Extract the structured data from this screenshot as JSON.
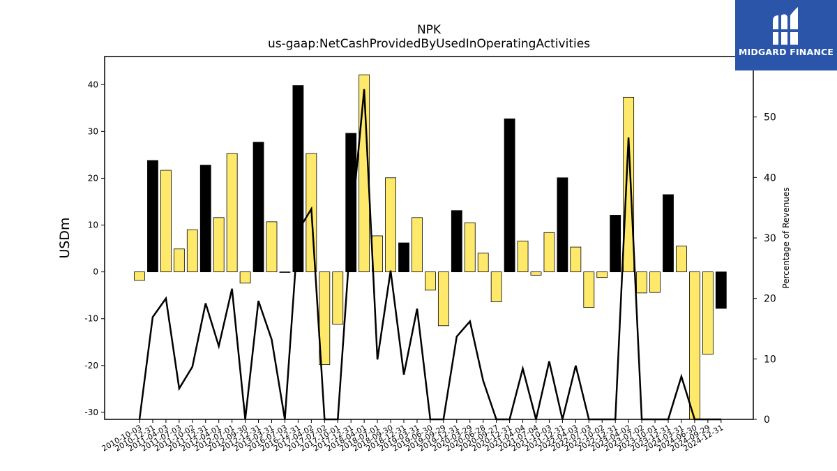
{
  "logo": {
    "text": "MIDGARD FINANCE"
  },
  "chart_data": {
    "type": "bar",
    "title": "NPK",
    "subtitle": "us-gaap:NetCashProvidedByUsedInOperatingActivities",
    "ylabel": "USDm",
    "y2label": "Percentage of Revenues",
    "ylim": [
      -31.5,
      46
    ],
    "y2lim": [
      0,
      60
    ],
    "yticks": [
      -30,
      -20,
      -10,
      0,
      10,
      20,
      30,
      40
    ],
    "y2ticks": [
      0,
      10,
      20,
      30,
      40,
      50
    ],
    "categories": [
      "2010-10-03",
      "2010-12-31",
      "2011-04-03",
      "2011-07-03",
      "2011-10-02",
      "2011-12-31",
      "2012-04-01",
      "2012-07-01",
      "2012-09-30",
      "2012-12-31",
      "2013-03-31",
      "2016-07-03",
      "2016-12-31",
      "2017-04-02",
      "2017-07-02",
      "2017-10-01",
      "2017-12-31",
      "2018-04-01",
      "2018-07-01",
      "2018-09-30",
      "2018-12-31",
      "2019-03-31",
      "2019-06-30",
      "2019-09-29",
      "2019-12-31",
      "2020-03-29",
      "2020-06-28",
      "2020-09-27",
      "2020-12-31",
      "2021-04-04",
      "2021-07-04",
      "2021-10-03",
      "2021-12-31",
      "2022-04-03",
      "2022-07-03",
      "2022-10-02",
      "2022-12-31",
      "2023-04-02",
      "2023-07-02",
      "2023-10-01",
      "2023-12-31",
      "2024-03-31",
      "2024-06-30",
      "2024-09-29",
      "2024-12-31"
    ],
    "values": [
      -1.8,
      23.8,
      21.7,
      4.9,
      9.0,
      22.8,
      11.6,
      25.3,
      -2.4,
      27.7,
      10.7,
      0,
      39.8,
      25.3,
      -19.8,
      -11.2,
      29.6,
      42.1,
      7.7,
      20.1,
      6.2,
      11.6,
      -3.9,
      -11.5,
      13.1,
      10.5,
      4.0,
      -6.4,
      32.7,
      6.6,
      -0.7,
      8.4,
      20.1,
      5.3,
      -7.6,
      -1.2,
      12.1,
      37.3,
      -4.5,
      -4.4,
      16.5,
      5.5,
      -31.5,
      -17.6,
      -7.8
    ],
    "colors": [
      "yellow",
      "black",
      "yellow",
      "yellow",
      "yellow",
      "black",
      "yellow",
      "yellow",
      "yellow",
      "black",
      "yellow",
      "black",
      "black",
      "yellow",
      "yellow",
      "yellow",
      "black",
      "yellow",
      "yellow",
      "yellow",
      "black",
      "yellow",
      "yellow",
      "yellow",
      "black",
      "yellow",
      "yellow",
      "yellow",
      "black",
      "yellow",
      "yellow",
      "yellow",
      "black",
      "yellow",
      "yellow",
      "yellow",
      "black",
      "yellow",
      "yellow",
      "yellow",
      "black",
      "yellow",
      "yellow",
      "yellow",
      "black"
    ],
    "palette": {
      "yellow": "#ffe96b",
      "black": "#000000",
      "edge": "#000000"
    },
    "line": {
      "axis": "y2",
      "color": "#000000",
      "values": [
        0,
        16.9,
        20.0,
        5.1,
        8.7,
        19.2,
        12.1,
        21.6,
        0,
        19.6,
        13.2,
        0,
        31.2,
        34.8,
        0,
        0,
        31.4,
        54.6,
        9.9,
        24.6,
        7.4,
        18.3,
        0,
        0,
        13.7,
        16.2,
        6.4,
        0,
        0,
        8.4,
        0,
        9.6,
        0,
        8.9,
        0,
        0,
        0,
        46.6,
        0,
        0,
        0,
        7.1,
        0,
        0,
        0
      ]
    }
  }
}
